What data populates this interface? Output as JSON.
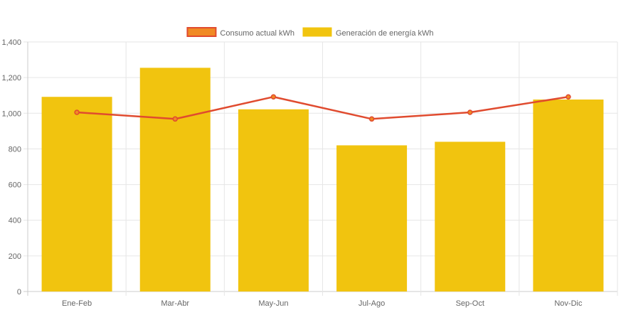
{
  "chart_data": {
    "type": "bar",
    "categories": [
      "Ene-Feb",
      "Mar-Abr",
      "May-Jun",
      "Jul-Ago",
      "Sep-Oct",
      "Nov-Dic"
    ],
    "series": [
      {
        "name": "Consumo actual kWh",
        "type": "line",
        "color": "#e04b2f",
        "point_color": "#f08a24",
        "values": [
          1005,
          968,
          1092,
          968,
          1005,
          1092
        ]
      },
      {
        "name": "Generación de energía kWh",
        "type": "bar",
        "color": "#f1c40f",
        "values": [
          1092,
          1255,
          1022,
          820,
          840,
          1077
        ]
      }
    ],
    "xlabel": "",
    "ylabel": "",
    "ylim": [
      0,
      1400
    ],
    "yticks": [
      "0",
      "200",
      "400",
      "600",
      "800",
      "1,000",
      "1,200",
      "1,400"
    ],
    "grid": true,
    "legend_position": "top-center"
  }
}
